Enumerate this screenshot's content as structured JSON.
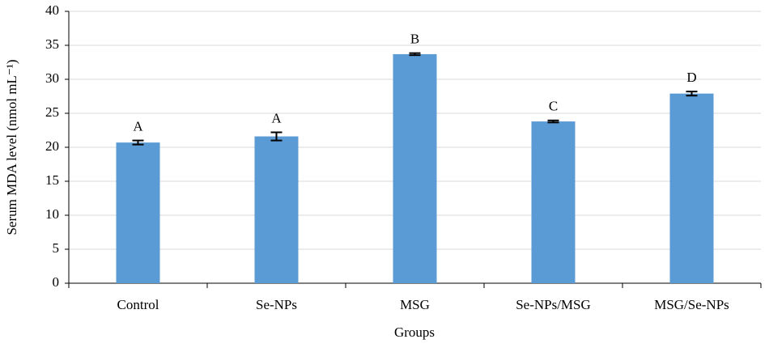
{
  "chart_data": {
    "type": "bar",
    "x_label": "Groups",
    "y_label": "Serum MDA level (nmol mL⁻¹)",
    "categories": [
      "Control",
      "Se-NPs",
      "MSG",
      "Se-NPs/MSG",
      "MSG/Se-NPs"
    ],
    "values": [
      20.7,
      21.6,
      33.7,
      23.8,
      27.9
    ],
    "errors": [
      0.3,
      0.6,
      0.15,
      0.15,
      0.3
    ],
    "annotations": [
      "A",
      "A",
      "B",
      "C",
      "D"
    ],
    "color": "#5b9bd5",
    "ylim": [
      0,
      40
    ],
    "yticks": [
      0,
      5,
      10,
      15,
      20,
      25,
      30,
      35,
      40
    ],
    "grid": true
  }
}
